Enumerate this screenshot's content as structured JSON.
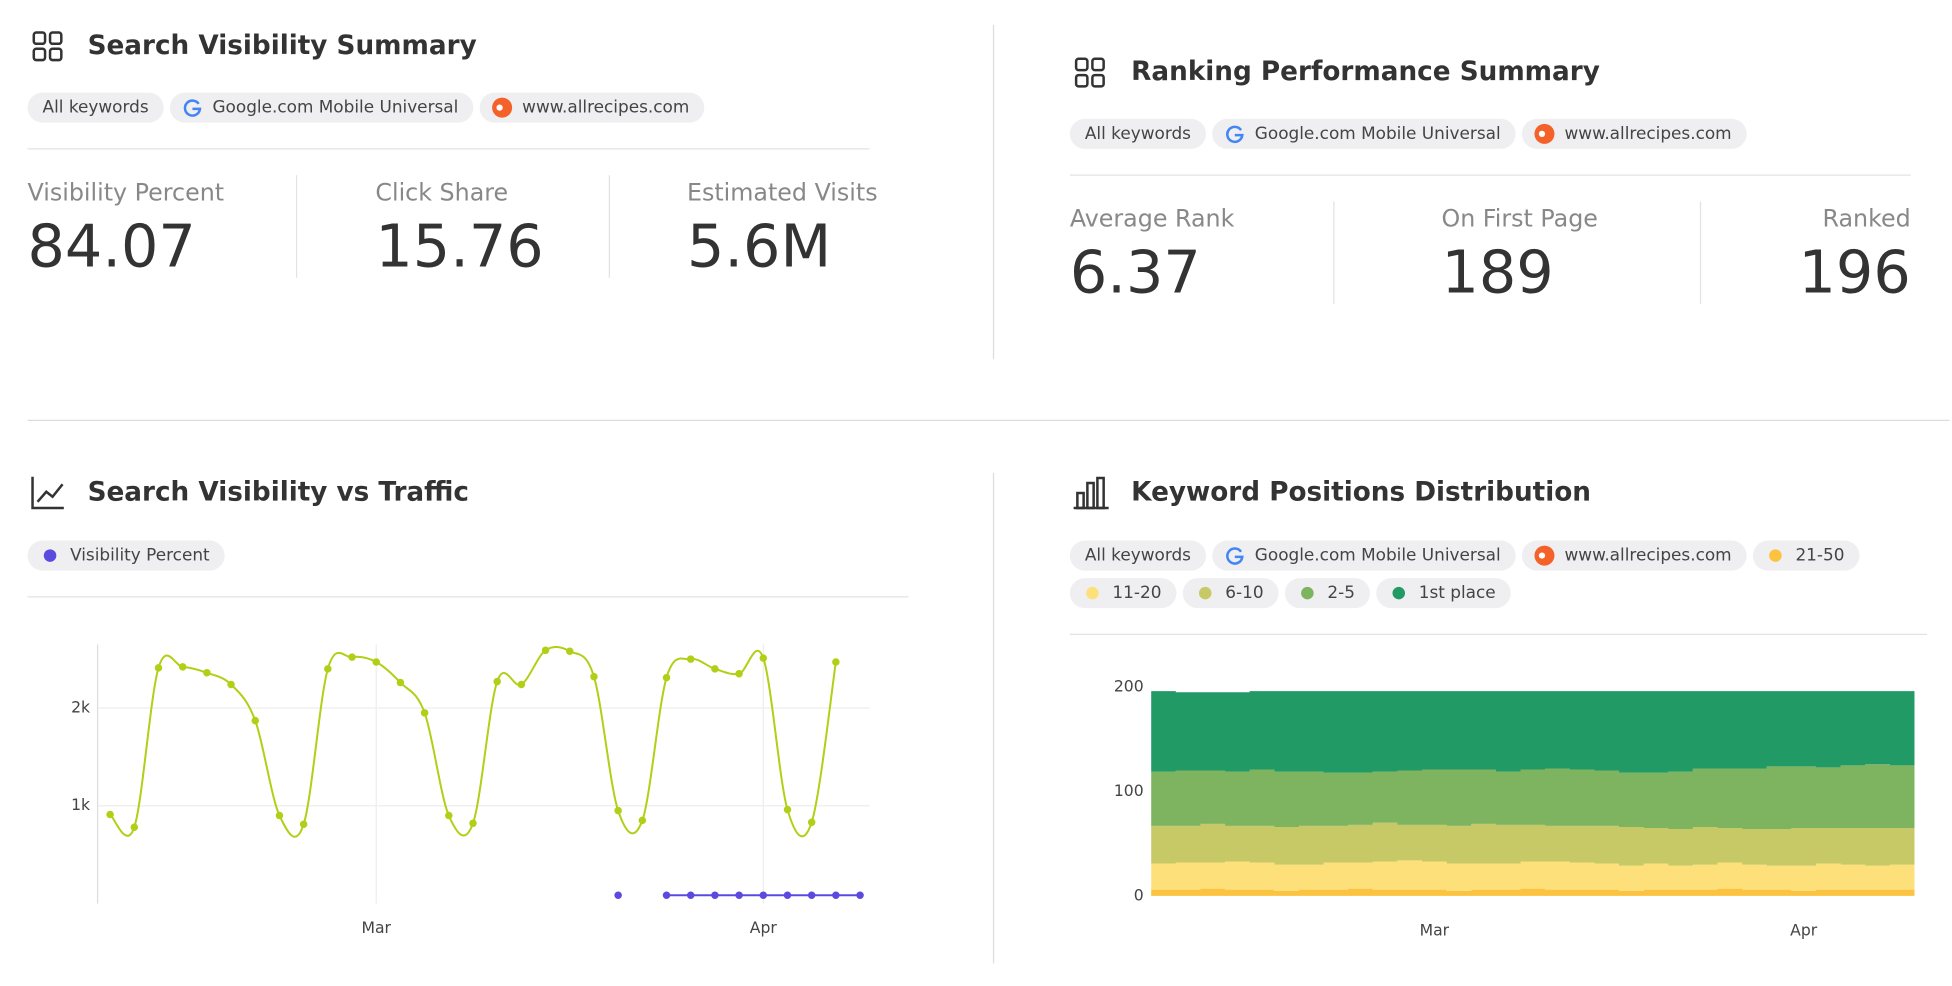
{
  "panels": [
    {
      "title": "Search Visibility Summary",
      "chips": [
        "All keywords",
        "Google.com Mobile Universal",
        "www.allrecipes.com"
      ],
      "metrics": [
        {
          "label": "Visibility Percent",
          "value": 84.07
        },
        {
          "label": "Click Share",
          "value": 15.76
        },
        {
          "label": "Estimated Visits",
          "value": "5.6M"
        }
      ]
    },
    {
      "title": "Ranking Performance Summary",
      "chips": [
        "All keywords",
        "Google.com Mobile Universal",
        "www.allrecipes.com"
      ],
      "metrics": [
        {
          "label": "Average Rank",
          "value": 6.37
        },
        {
          "label": "On First Page",
          "value": 189
        },
        {
          "label": "Ranked",
          "value": 196
        }
      ]
    }
  ],
  "chart_data": [
    {
      "type": "line",
      "title": "Search Visibility vs Traffic",
      "categories": [
        null,
        null,
        null,
        null,
        null,
        null,
        null,
        null,
        null,
        null,
        null,
        "Mar",
        null,
        null,
        null,
        null,
        null,
        null,
        null,
        null,
        null,
        null,
        null,
        null,
        null,
        null,
        null,
        "Apr",
        null,
        null,
        null,
        null
      ],
      "series": [
        {
          "color": "#b2cf17",
          "values": [
            910,
            780,
            2410,
            2420,
            2360,
            2240,
            1870,
            900,
            810,
            2400,
            2520,
            2470,
            2260,
            1950,
            900,
            820,
            2270,
            2240,
            2590,
            2580,
            2320,
            950,
            850,
            2310,
            2500,
            2400,
            2350,
            2510,
            960,
            830,
            2470,
            null
          ]
        },
        {
          "name": "Visibility Percent",
          "color": "#5b4ae0",
          "values": [
            null,
            null,
            null,
            null,
            null,
            null,
            null,
            null,
            null,
            null,
            null,
            null,
            null,
            null,
            null,
            null,
            null,
            null,
            null,
            null,
            null,
            84,
            null,
            84,
            84,
            84,
            84,
            84,
            84,
            84,
            84,
            84
          ]
        }
      ],
      "ylim": [
        0,
        2650
      ],
      "yticks": [
        {
          "value": 1000,
          "label": "1k"
        },
        {
          "value": 2000,
          "label": "2k"
        }
      ],
      "grid": true
    },
    {
      "type": "stacked-area",
      "title": "Keyword Positions Distribution",
      "filters": [
        "All keywords",
        "Google.com Mobile Universal",
        "www.allrecipes.com"
      ],
      "categories": [
        null,
        null,
        null,
        null,
        null,
        null,
        null,
        null,
        null,
        null,
        null,
        "Mar",
        null,
        null,
        null,
        null,
        null,
        null,
        null,
        null,
        null,
        null,
        null,
        null,
        null,
        null,
        "Apr",
        null,
        null,
        null,
        null
      ],
      "series": [
        {
          "name": "21-50",
          "color": "#fbc340",
          "values": [
            6,
            6,
            7,
            6,
            6,
            5,
            6,
            6,
            7,
            6,
            6,
            6,
            5,
            6,
            6,
            7,
            6,
            6,
            6,
            5,
            6,
            6,
            6,
            7,
            6,
            6,
            5,
            6,
            6,
            6,
            6
          ]
        },
        {
          "name": "11-20",
          "color": "#fde07a",
          "values": [
            25,
            26,
            25,
            27,
            26,
            25,
            24,
            26,
            25,
            27,
            28,
            27,
            26,
            25,
            25,
            26,
            27,
            26,
            25,
            24,
            25,
            23,
            24,
            25,
            24,
            23,
            24,
            25,
            24,
            23,
            24
          ]
        },
        {
          "name": "6-10",
          "color": "#c6c966",
          "values": [
            36,
            35,
            37,
            34,
            35,
            36,
            37,
            35,
            36,
            37,
            34,
            35,
            36,
            38,
            37,
            35,
            34,
            35,
            36,
            37,
            34,
            35,
            36,
            33,
            34,
            35,
            36,
            34,
            35,
            36,
            35
          ]
        },
        {
          "name": "2-5",
          "color": "#7eb35f",
          "values": [
            52,
            53,
            51,
            52,
            54,
            53,
            52,
            51,
            50,
            49,
            52,
            53,
            54,
            52,
            51,
            53,
            55,
            54,
            53,
            52,
            53,
            55,
            56,
            57,
            58,
            60,
            59,
            58,
            60,
            61,
            60
          ]
        },
        {
          "name": "1st place",
          "color": "#219a66",
          "values": [
            77,
            75,
            75,
            76,
            75,
            77,
            77,
            78,
            78,
            77,
            76,
            75,
            75,
            75,
            77,
            75,
            74,
            75,
            76,
            78,
            78,
            77,
            74,
            74,
            74,
            72,
            72,
            73,
            71,
            70,
            71
          ]
        }
      ],
      "ylim": [
        0,
        200
      ],
      "yticks": [
        0,
        100,
        200
      ]
    }
  ]
}
